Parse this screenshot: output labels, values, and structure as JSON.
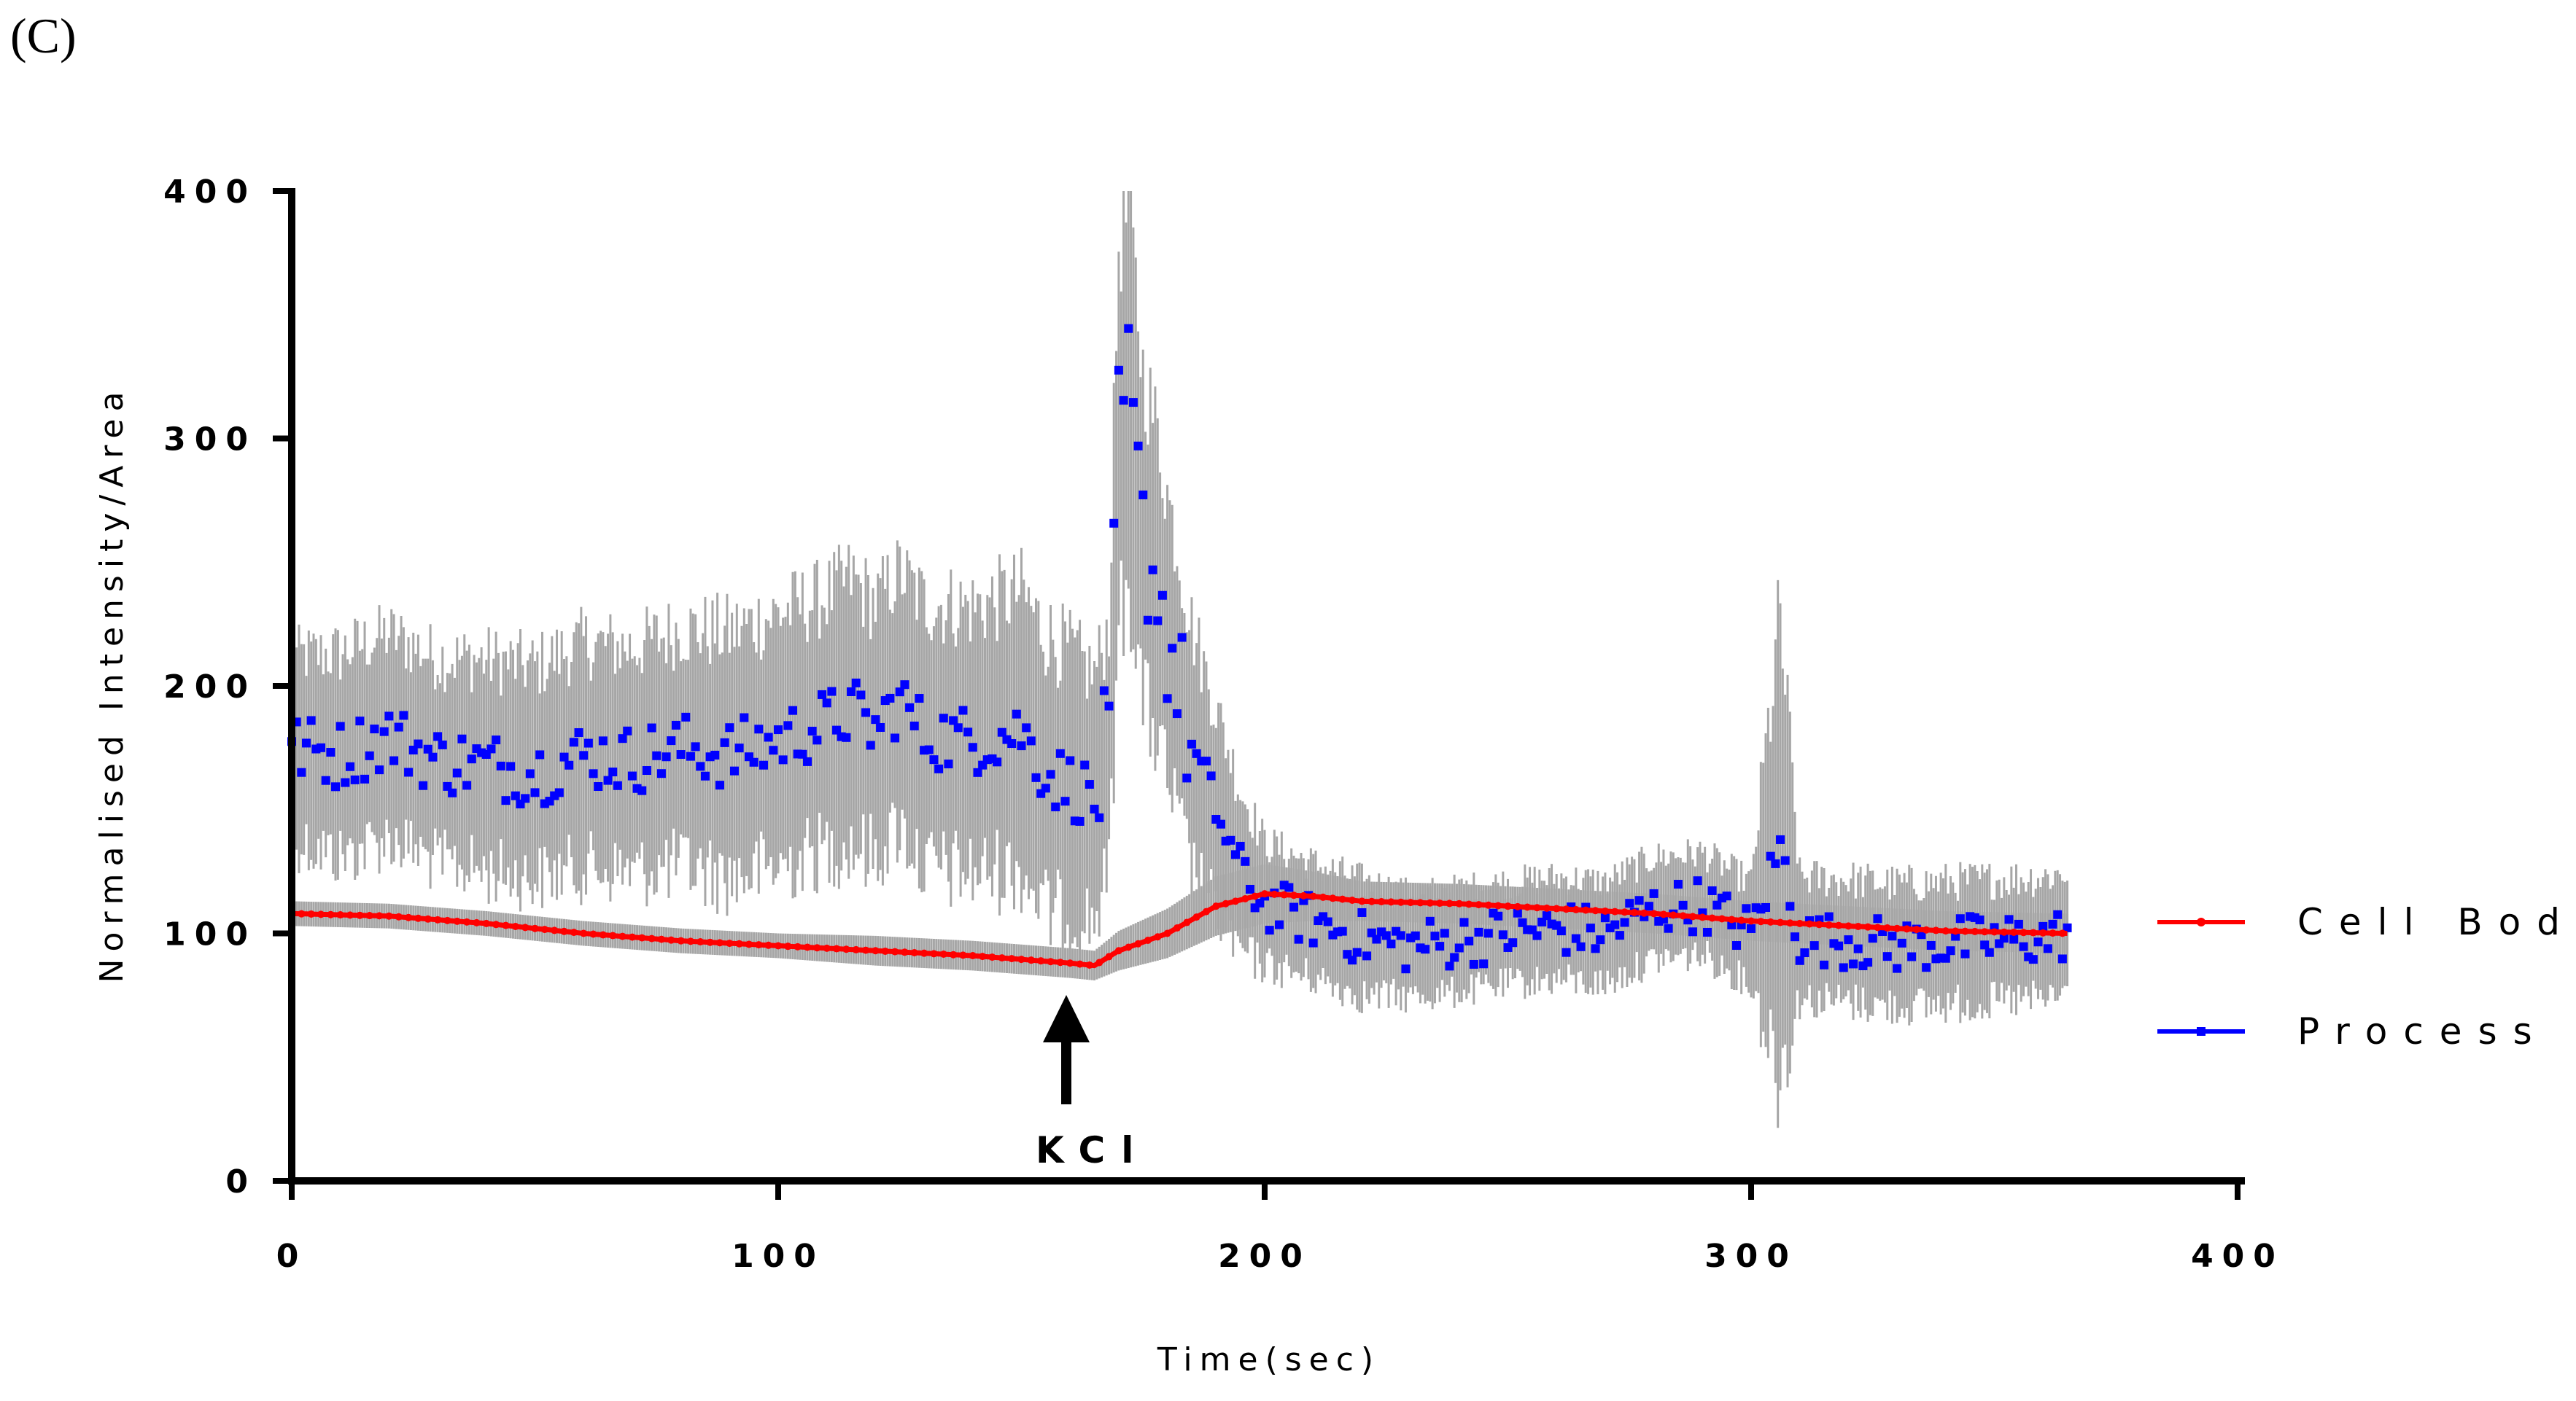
{
  "panel_label": "(C)",
  "chart_data": {
    "type": "scatter",
    "title": "",
    "xlabel": "Time(sec)",
    "ylabel": "Normalised Intensity/Area",
    "xlim": [
      0,
      400
    ],
    "ylim": [
      0,
      400
    ],
    "x_ticks": [
      "0",
      "100",
      "200",
      "300",
      "400"
    ],
    "y_ticks": [
      "0",
      "100",
      "200",
      "300",
      "400"
    ],
    "grid": false,
    "legend_position": "right",
    "colors": {
      "cell_body": "#ff0000",
      "process": "#0000ff",
      "error_bars": "#a6a6a6",
      "axis": "#000000"
    },
    "annotation": {
      "label": "KCl",
      "x": 164,
      "marker": "up-arrow"
    },
    "series": [
      {
        "name": "Cell Body",
        "style": "line-with-points",
        "color": "#ff0000",
        "x": [
          0,
          20,
          40,
          60,
          80,
          100,
          120,
          140,
          160,
          165,
          170,
          180,
          190,
          200,
          210,
          220,
          240,
          260,
          280,
          300,
          320,
          340,
          365
        ],
        "y": [
          108,
          107,
          104,
          100,
          97,
          95,
          93,
          91,
          88,
          87,
          93,
          100,
          111,
          116,
          115,
          113,
          112,
          110,
          108,
          105,
          103,
          101,
          100
        ],
        "error": [
          5,
          5,
          5,
          5,
          5,
          5,
          6,
          6,
          6,
          6,
          8,
          10,
          12,
          12,
          10,
          8,
          8,
          8,
          8,
          8,
          8,
          8,
          8
        ]
      },
      {
        "name": "Process",
        "style": "points",
        "color": "#0000ff",
        "x": [
          0,
          10,
          20,
          30,
          40,
          50,
          60,
          70,
          80,
          90,
          100,
          110,
          115,
          120,
          125,
          130,
          140,
          150,
          155,
          160,
          165,
          168,
          170,
          172,
          175,
          178,
          180,
          185,
          190,
          195,
          200,
          210,
          220,
          230,
          240,
          250,
          260,
          270,
          280,
          290,
          300,
          306,
          310,
          320,
          330,
          340,
          350,
          360,
          365
        ],
        "y": [
          175,
          172,
          180,
          170,
          168,
          165,
          172,
          170,
          175,
          172,
          178,
          185,
          190,
          182,
          195,
          180,
          178,
          182,
          165,
          160,
          155,
          175,
          300,
          320,
          260,
          240,
          220,
          175,
          150,
          125,
          112,
          105,
          98,
          95,
          97,
          100,
          102,
          100,
          110,
          112,
          100,
          135,
          98,
          97,
          95,
          96,
          97,
          98,
          100
        ],
        "error": [
          45,
          50,
          50,
          50,
          52,
          52,
          55,
          55,
          58,
          60,
          62,
          62,
          65,
          62,
          62,
          65,
          65,
          68,
          68,
          65,
          60,
          60,
          95,
          90,
          80,
          75,
          70,
          60,
          50,
          40,
          30,
          28,
          28,
          25,
          25,
          25,
          25,
          25,
          25,
          25,
          25,
          110,
          30,
          30,
          30,
          30,
          30,
          30,
          30
        ]
      }
    ]
  }
}
